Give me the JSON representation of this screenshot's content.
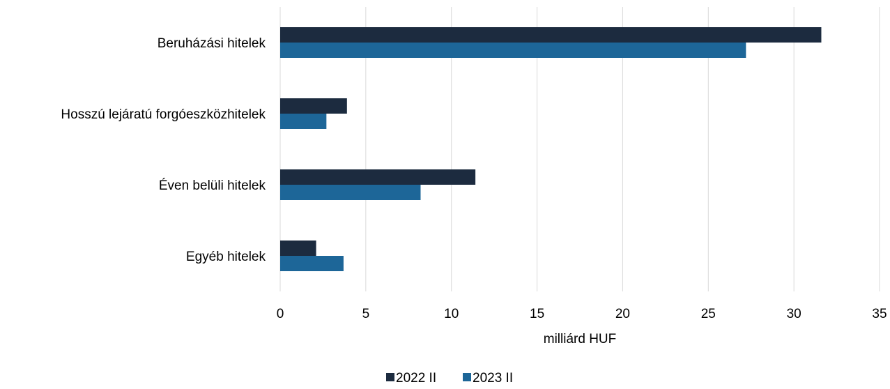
{
  "chart_data": {
    "type": "bar",
    "orientation": "horizontal",
    "categories": [
      "Beruházási hitelek",
      "Hosszú lejáratú forgóeszközhitelek",
      "Éven belüli hitelek",
      "Egyéb hitelek"
    ],
    "series": [
      {
        "name": "2022 II",
        "color": "#1c2b3f",
        "values": [
          31.6,
          3.9,
          11.4,
          2.1
        ]
      },
      {
        "name": "2023 II",
        "color": "#1d6698",
        "values": [
          27.2,
          2.7,
          8.2,
          3.7
        ]
      }
    ],
    "xlabel": "milliárd HUF",
    "xlim": [
      0,
      35
    ],
    "xticks": [
      0,
      5,
      10,
      15,
      20,
      25,
      30,
      35
    ],
    "grid": true,
    "legend": "bottom"
  }
}
